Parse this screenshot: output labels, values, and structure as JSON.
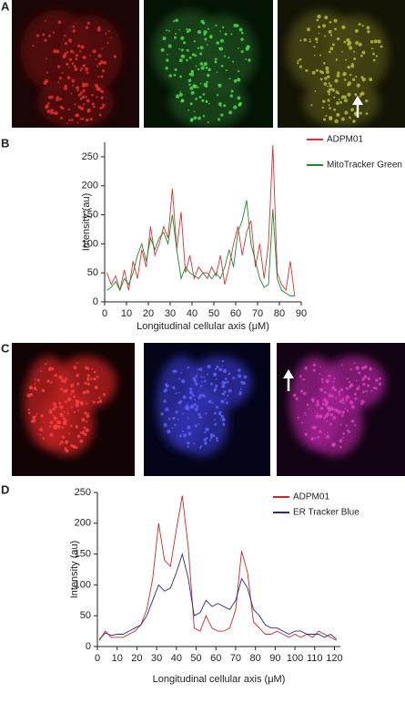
{
  "panels": [
    "A",
    "B",
    "C",
    "D"
  ],
  "chart_data": [
    {
      "type": "line",
      "x_label": "Longitudinal cellular axis (μM)",
      "y_label": "Intensity (au)",
      "x": [
        1,
        3,
        5,
        7,
        9,
        11,
        13,
        15,
        17,
        19,
        21,
        23,
        25,
        27,
        29,
        31,
        33,
        35,
        37,
        39,
        41,
        43,
        45,
        47,
        49,
        51,
        53,
        55,
        57,
        59,
        61,
        63,
        65,
        67,
        69,
        71,
        73,
        75,
        77,
        79,
        81,
        83,
        85,
        87
      ],
      "series": [
        {
          "name": "ADPM01",
          "color": "#e03030",
          "values": [
            50,
            30,
            45,
            20,
            55,
            20,
            70,
            40,
            90,
            60,
            130,
            80,
            100,
            130,
            110,
            195,
            90,
            155,
            50,
            80,
            40,
            60,
            50,
            40,
            60,
            45,
            80,
            30,
            60,
            100,
            130,
            80,
            120,
            140,
            60,
            100,
            40,
            100,
            270,
            50,
            30,
            20,
            70,
            10
          ]
        },
        {
          "name": "MitoTracker Green",
          "color": "#1a8a2a",
          "values": [
            20,
            25,
            35,
            20,
            40,
            30,
            50,
            80,
            100,
            70,
            110,
            90,
            110,
            120,
            100,
            150,
            90,
            40,
            60,
            50,
            45,
            40,
            50,
            50,
            40,
            50,
            40,
            60,
            90,
            60,
            120,
            140,
            175,
            100,
            70,
            40,
            25,
            30,
            160,
            40,
            20,
            15,
            10,
            10
          ]
        }
      ],
      "xlim": [
        0,
        90
      ],
      "xticks": [
        0,
        10,
        20,
        30,
        40,
        50,
        60,
        70,
        80,
        90
      ],
      "ylim": [
        0,
        275
      ],
      "yticks": [
        0,
        50,
        100,
        150,
        200,
        250
      ]
    },
    {
      "type": "line",
      "x_label": "Longitudinal cellular axis (μM)",
      "y_label": "Intensity (au)",
      "x": [
        1,
        4,
        7,
        10,
        13,
        16,
        19,
        22,
        25,
        28,
        31,
        34,
        37,
        40,
        43,
        46,
        49,
        52,
        55,
        58,
        61,
        64,
        67,
        70,
        73,
        76,
        79,
        82,
        85,
        88,
        91,
        94,
        97,
        100,
        103,
        106,
        109,
        112,
        115,
        118,
        121
      ],
      "series": [
        {
          "name": "ADPM01",
          "color": "#d02828",
          "values": [
            10,
            25,
            15,
            15,
            15,
            20,
            25,
            35,
            60,
            110,
            200,
            140,
            130,
            190,
            245,
            160,
            30,
            25,
            50,
            30,
            25,
            25,
            30,
            60,
            155,
            120,
            40,
            30,
            20,
            20,
            25,
            20,
            15,
            20,
            15,
            20,
            15,
            25,
            20,
            15,
            10
          ]
        },
        {
          "name": "ER Tracker Blue",
          "color": "#2a2a80",
          "values": [
            12,
            22,
            18,
            20,
            20,
            25,
            30,
            35,
            50,
            75,
            100,
            90,
            95,
            120,
            150,
            110,
            50,
            55,
            75,
            65,
            70,
            65,
            60,
            75,
            110,
            95,
            60,
            50,
            35,
            30,
            30,
            25,
            20,
            25,
            25,
            20,
            20,
            20,
            15,
            20,
            12
          ]
        }
      ],
      "xlim": [
        0,
        123
      ],
      "xticks": [
        0,
        10,
        20,
        30,
        40,
        50,
        60,
        70,
        80,
        90,
        100,
        110,
        120
      ],
      "ylim": [
        0,
        250
      ],
      "yticks": [
        0,
        50,
        100,
        150,
        200,
        250
      ]
    }
  ]
}
